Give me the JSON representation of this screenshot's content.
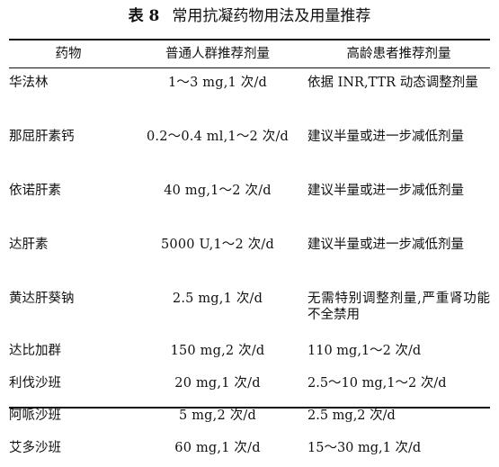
{
  "table": {
    "label": "表 8",
    "title": "常用抗凝药物用法及用量推荐",
    "headers": [
      "药物",
      "普通人群推荐剂量",
      "高龄患者推荐剂量"
    ],
    "rows": [
      {
        "drug": "华法林",
        "normal": "1～3 mg,1 次/d",
        "elderly": "依据 INR,TTR 动态调整剂量"
      },
      {
        "drug": "那屈肝素钙",
        "normal": "0.2～0.4 ml,1～2 次/d",
        "elderly": "建议半量或进一步减低剂量"
      },
      {
        "drug": "依诺肝素",
        "normal": "40 mg,1～2 次/d",
        "elderly": "建议半量或进一步减低剂量"
      },
      {
        "drug": "达肝素",
        "normal": "5000 U,1～2 次/d",
        "elderly": "建议半量或进一步减低剂量"
      },
      {
        "drug": "黄达肝葵钠",
        "normal": "2.5 mg,1 次/d",
        "elderly": "无需特别调整剂量,严重肾功能不全禁用"
      },
      {
        "drug": "达比加群",
        "normal": "150 mg,2 次/d",
        "elderly": "110 mg,1～2 次/d"
      },
      {
        "drug": "利伐沙班",
        "normal": "20 mg,1 次/d",
        "elderly": "2.5～10 mg,1～2 次/d"
      },
      {
        "drug": "阿哌沙班",
        "normal": "5 mg,2 次/d",
        "elderly": "2.5 mg,2 次/d"
      },
      {
        "drug": "艾多沙班",
        "normal": "60 mg,1 次/d",
        "elderly": "15～30 mg,1 次/d"
      }
    ]
  }
}
